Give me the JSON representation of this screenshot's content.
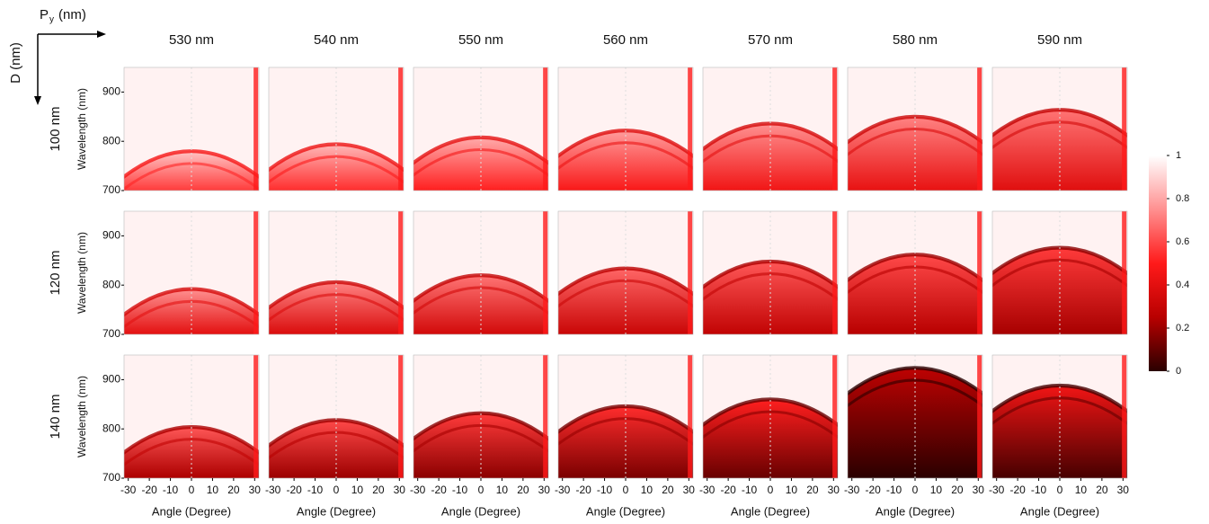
{
  "chart_data": {
    "type": "heatmap-grid",
    "column_axis": {
      "symbol": "P",
      "subscript": "y",
      "unit": "(nm)"
    },
    "row_axis_label": "D (nm)",
    "columns": [
      "530 nm",
      "540 nm",
      "550 nm",
      "560 nm",
      "570 nm",
      "580 nm",
      "590 nm"
    ],
    "rows": [
      "100 nm",
      "120 nm",
      "140 nm"
    ],
    "x_label": "Angle (Degree)",
    "y_label": "Wavelength (nm)",
    "xlim": [
      -32,
      32
    ],
    "xticks": [
      -30,
      -20,
      -10,
      0,
      10,
      20,
      30
    ],
    "ylim": [
      700,
      950
    ],
    "yticks": [
      700,
      800,
      900
    ],
    "colorbar": {
      "lim": [
        0,
        1
      ],
      "ticks": [
        0,
        0.2,
        0.4,
        0.6,
        0.8,
        1
      ],
      "colormap": [
        "#2a0000",
        "#b80000",
        "#ff1a1a",
        "#ff9090",
        "#ffffff"
      ]
    }
  }
}
